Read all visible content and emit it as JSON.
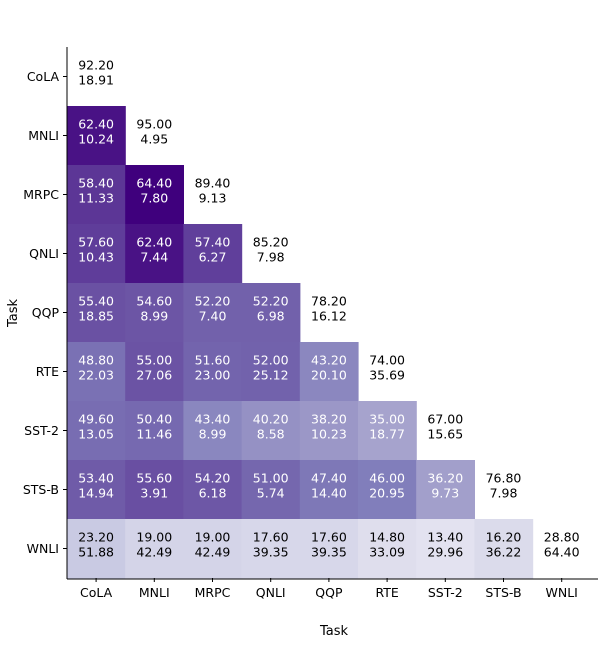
{
  "chart_data": {
    "type": "heatmap",
    "title": "",
    "xlabel": "Task",
    "ylabel": "Task",
    "tasks": [
      "CoLA",
      "MNLI",
      "MRPC",
      "QNLI",
      "QQP",
      "RTE",
      "SST-2",
      "STS-B",
      "WNLI"
    ],
    "colormap": "Purples",
    "grid": false,
    "cells": [
      [
        [
          "92.20",
          "18.91"
        ]
      ],
      [
        [
          "62.40",
          "10.24"
        ],
        [
          "95.00",
          "4.95"
        ]
      ],
      [
        [
          "58.40",
          "11.33"
        ],
        [
          "64.40",
          "7.80"
        ],
        [
          "89.40",
          "9.13"
        ]
      ],
      [
        [
          "57.60",
          "10.43"
        ],
        [
          "62.40",
          "7.44"
        ],
        [
          "57.40",
          "6.27"
        ],
        [
          "85.20",
          "7.98"
        ]
      ],
      [
        [
          "55.40",
          "18.85"
        ],
        [
          "54.60",
          "8.99"
        ],
        [
          "52.20",
          "7.40"
        ],
        [
          "52.20",
          "6.98"
        ],
        [
          "78.20",
          "16.12"
        ]
      ],
      [
        [
          "48.80",
          "22.03"
        ],
        [
          "55.00",
          "27.06"
        ],
        [
          "51.60",
          "23.00"
        ],
        [
          "52.00",
          "25.12"
        ],
        [
          "43.20",
          "20.10"
        ],
        [
          "74.00",
          "35.69"
        ]
      ],
      [
        [
          "49.60",
          "13.05"
        ],
        [
          "50.40",
          "11.46"
        ],
        [
          "43.40",
          "8.99"
        ],
        [
          "40.20",
          "8.58"
        ],
        [
          "38.20",
          "10.23"
        ],
        [
          "35.00",
          "18.77"
        ],
        [
          "67.00",
          "15.65"
        ]
      ],
      [
        [
          "53.40",
          "14.94"
        ],
        [
          "55.60",
          "3.91"
        ],
        [
          "54.20",
          "6.18"
        ],
        [
          "51.00",
          "5.74"
        ],
        [
          "47.40",
          "14.40"
        ],
        [
          "46.00",
          "20.95"
        ],
        [
          "36.20",
          "9.73"
        ],
        [
          "76.80",
          "7.98"
        ]
      ],
      [
        [
          "23.20",
          "51.88"
        ],
        [
          "19.00",
          "42.49"
        ],
        [
          "19.00",
          "42.49"
        ],
        [
          "17.60",
          "39.35"
        ],
        [
          "17.60",
          "39.35"
        ],
        [
          "14.80",
          "33.09"
        ],
        [
          "13.40",
          "29.96"
        ],
        [
          "16.20",
          "36.22"
        ],
        [
          "28.80",
          "64.40"
        ]
      ]
    ]
  }
}
